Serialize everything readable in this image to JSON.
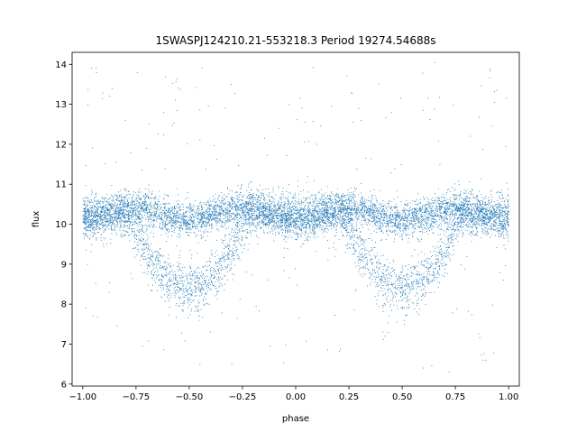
{
  "chart_data": {
    "type": "scatter",
    "title": "1SWASPJ124210.21-553218.3 Period 19274.54688s",
    "xlabel": "phase",
    "ylabel": "flux",
    "xlim": [
      -1.05,
      1.05
    ],
    "ylim": [
      5.95,
      14.3
    ],
    "x_ticks": [
      -1.0,
      -0.75,
      -0.5,
      -0.25,
      0.0,
      0.25,
      0.5,
      0.75,
      1.0
    ],
    "x_tick_labels": [
      "−1.00",
      "−0.75",
      "−0.50",
      "−0.25",
      "0.00",
      "0.25",
      "0.50",
      "0.75",
      "1.00"
    ],
    "y_ticks": [
      6,
      7,
      8,
      9,
      10,
      11,
      12,
      13,
      14
    ],
    "y_tick_labels": [
      "6",
      "7",
      "8",
      "9",
      "10",
      "11",
      "12",
      "13",
      "14"
    ],
    "grid": false,
    "legend": "none",
    "color": "#1f77b4",
    "series": [
      {
        "description_of_shape": "",
        "x_range": [
          -1.0,
          1.0
        ],
        "baseline_flux": 10.25,
        "dip_centers": [
          -0.5,
          0.5
        ],
        "dip_min_flux": 8.4,
        "points": [
          [
            -0.96,
            13.9
          ],
          [
            0.02,
            13.15
          ],
          [
            0.99,
            13.15
          ],
          [
            -0.62,
            12.8
          ],
          [
            0.45,
            12.8
          ],
          [
            -0.33,
            12.9
          ],
          [
            0.6,
            12.85
          ],
          [
            -0.8,
            12.6
          ],
          [
            0.27,
            12.55
          ],
          [
            -0.08,
            12.4
          ],
          [
            0.92,
            12.45
          ],
          [
            -0.45,
            12.1
          ],
          [
            0.82,
            12.2
          ],
          [
            0.1,
            12.0
          ],
          [
            -0.7,
            11.9
          ],
          [
            -0.95,
            7.7
          ],
          [
            -0.4,
            7.3
          ],
          [
            0.42,
            7.2
          ],
          [
            -0.12,
            6.95
          ],
          [
            0.88,
            6.6
          ],
          [
            0.6,
            6.4
          ],
          [
            -0.3,
            6.5
          ],
          [
            0.15,
            6.85
          ],
          [
            -0.72,
            6.95
          ],
          [
            0.72,
            6.3
          ]
        ]
      }
    ]
  }
}
